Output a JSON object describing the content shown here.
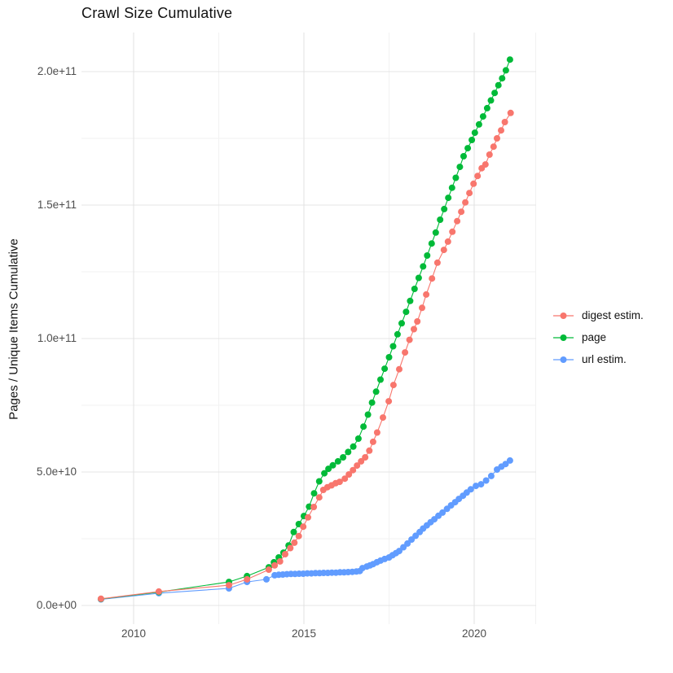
{
  "title": "Crawl Size Cumulative",
  "chart_data": {
    "type": "scatter",
    "title": "Crawl Size Cumulative",
    "xlabel": "",
    "ylabel": "Pages / Unique Items Cumulative",
    "x_ticks": [
      2010,
      2015,
      2020
    ],
    "x_tick_labels": [
      "2010",
      "2015",
      "2020"
    ],
    "x_minor_ticks": [
      2012.5,
      2017.5
    ],
    "y_tick_values_billions": [
      0,
      50,
      100,
      150,
      200
    ],
    "y_tick_labels": [
      "0.0e+00",
      "5.0e+10",
      "1.0e+11",
      "1.5e+11",
      "2.0e+11"
    ],
    "y_minor_values_billions": [
      25,
      75,
      125,
      175
    ],
    "xlim": [
      2008.6,
      2021.9
    ],
    "ylim_billions": [
      0,
      205
    ],
    "grid": true,
    "legend_position": "right",
    "value_unit_note": "point y-values are in billions (1e9) of pages/items",
    "series": [
      {
        "name": "digest estim.",
        "color": "#F8766D",
        "points": [
          [
            2009.04,
            2.5
          ],
          [
            2010.74,
            5.2
          ],
          [
            2012.8,
            7.6
          ],
          [
            2013.33,
            9.8
          ],
          [
            2013.97,
            13.4
          ],
          [
            2014.14,
            15.0
          ],
          [
            2014.3,
            16.5
          ],
          [
            2014.45,
            19.2
          ],
          [
            2014.6,
            21.5
          ],
          [
            2014.72,
            23.5
          ],
          [
            2014.85,
            26.0
          ],
          [
            2014.98,
            29.5
          ],
          [
            2015.12,
            33.0
          ],
          [
            2015.29,
            36.9
          ],
          [
            2015.45,
            40.5
          ],
          [
            2015.57,
            43.3
          ],
          [
            2015.69,
            44.3
          ],
          [
            2015.81,
            45.0
          ],
          [
            2015.93,
            45.8
          ],
          [
            2016.05,
            46.3
          ],
          [
            2016.2,
            47.5
          ],
          [
            2016.32,
            49.1
          ],
          [
            2016.44,
            50.7
          ],
          [
            2016.56,
            52.4
          ],
          [
            2016.68,
            54.0
          ],
          [
            2016.8,
            55.5
          ],
          [
            2016.92,
            58.0
          ],
          [
            2017.03,
            61.3
          ],
          [
            2017.15,
            64.8
          ],
          [
            2017.32,
            70.4
          ],
          [
            2017.49,
            76.5
          ],
          [
            2017.63,
            82.6
          ],
          [
            2017.8,
            88.5
          ],
          [
            2017.97,
            94.8
          ],
          [
            2018.1,
            99.5
          ],
          [
            2018.23,
            103.5
          ],
          [
            2018.33,
            106.4
          ],
          [
            2018.47,
            111.5
          ],
          [
            2018.59,
            116.5
          ],
          [
            2018.76,
            122.5
          ],
          [
            2018.92,
            128.4
          ],
          [
            2019.11,
            133.2
          ],
          [
            2019.23,
            136.3
          ],
          [
            2019.36,
            140.0
          ],
          [
            2019.5,
            144.0
          ],
          [
            2019.62,
            147.5
          ],
          [
            2019.74,
            151.0
          ],
          [
            2019.86,
            154.5
          ],
          [
            2019.98,
            158.0
          ],
          [
            2020.1,
            160.9
          ],
          [
            2020.22,
            163.8
          ],
          [
            2020.33,
            165.2
          ],
          [
            2020.45,
            168.9
          ],
          [
            2020.57,
            171.9
          ],
          [
            2020.67,
            175.0
          ],
          [
            2020.79,
            178.0
          ],
          [
            2020.9,
            181.1
          ],
          [
            2021.07,
            184.5
          ]
        ]
      },
      {
        "name": "page",
        "color": "#00BA38",
        "points": [
          [
            2009.04,
            2.4
          ],
          [
            2010.74,
            5.0
          ],
          [
            2012.8,
            8.8
          ],
          [
            2013.33,
            11.0
          ],
          [
            2013.97,
            14.3
          ],
          [
            2014.12,
            16.2
          ],
          [
            2014.26,
            18.0
          ],
          [
            2014.4,
            19.8
          ],
          [
            2014.55,
            22.5
          ],
          [
            2014.7,
            27.5
          ],
          [
            2014.85,
            30.5
          ],
          [
            2015.0,
            33.5
          ],
          [
            2015.15,
            37.0
          ],
          [
            2015.3,
            42.0
          ],
          [
            2015.45,
            46.5
          ],
          [
            2015.6,
            49.5
          ],
          [
            2015.72,
            51.2
          ],
          [
            2015.85,
            52.5
          ],
          [
            2016.0,
            54.0
          ],
          [
            2016.15,
            55.5
          ],
          [
            2016.3,
            57.5
          ],
          [
            2016.45,
            59.5
          ],
          [
            2016.6,
            62.5
          ],
          [
            2016.75,
            67.0
          ],
          [
            2016.88,
            71.5
          ],
          [
            2017.0,
            76.0
          ],
          [
            2017.12,
            80.1
          ],
          [
            2017.25,
            84.6
          ],
          [
            2017.37,
            88.7
          ],
          [
            2017.5,
            93.0
          ],
          [
            2017.62,
            97.1
          ],
          [
            2017.75,
            101.6
          ],
          [
            2017.87,
            105.7
          ],
          [
            2018.0,
            110.0
          ],
          [
            2018.12,
            114.1
          ],
          [
            2018.25,
            118.6
          ],
          [
            2018.37,
            122.7
          ],
          [
            2018.5,
            127.0
          ],
          [
            2018.62,
            131.1
          ],
          [
            2018.75,
            135.6
          ],
          [
            2018.87,
            139.7
          ],
          [
            2019.0,
            144.5
          ],
          [
            2019.12,
            148.5
          ],
          [
            2019.24,
            152.7
          ],
          [
            2019.35,
            156.5
          ],
          [
            2019.46,
            160.2
          ],
          [
            2019.58,
            164.3
          ],
          [
            2019.69,
            168.3
          ],
          [
            2019.81,
            171.3
          ],
          [
            2019.93,
            174.4
          ],
          [
            2020.02,
            177.1
          ],
          [
            2020.14,
            180.2
          ],
          [
            2020.26,
            183.2
          ],
          [
            2020.38,
            186.3
          ],
          [
            2020.49,
            189.2
          ],
          [
            2020.6,
            192.0
          ],
          [
            2020.71,
            194.9
          ],
          [
            2020.82,
            197.5
          ],
          [
            2020.93,
            200.5
          ],
          [
            2021.05,
            204.5
          ]
        ]
      },
      {
        "name": "url estim.",
        "color": "#619CFF",
        "points": [
          [
            2009.04,
            2.3
          ],
          [
            2010.74,
            4.6
          ],
          [
            2012.8,
            6.4
          ],
          [
            2013.33,
            8.8
          ],
          [
            2013.9,
            9.8
          ],
          [
            2014.14,
            11.3
          ],
          [
            2014.26,
            11.5
          ],
          [
            2014.38,
            11.6
          ],
          [
            2014.5,
            11.7
          ],
          [
            2014.62,
            11.8
          ],
          [
            2014.74,
            11.8
          ],
          [
            2014.86,
            11.9
          ],
          [
            2014.98,
            11.9
          ],
          [
            2015.1,
            12.0
          ],
          [
            2015.22,
            12.0
          ],
          [
            2015.34,
            12.1
          ],
          [
            2015.46,
            12.1
          ],
          [
            2015.58,
            12.2
          ],
          [
            2015.7,
            12.2
          ],
          [
            2015.82,
            12.3
          ],
          [
            2015.94,
            12.3
          ],
          [
            2016.06,
            12.4
          ],
          [
            2016.18,
            12.4
          ],
          [
            2016.3,
            12.5
          ],
          [
            2016.42,
            12.6
          ],
          [
            2016.54,
            12.7
          ],
          [
            2016.64,
            12.9
          ],
          [
            2016.72,
            14.0
          ],
          [
            2016.85,
            14.6
          ],
          [
            2016.94,
            15.0
          ],
          [
            2017.03,
            15.5
          ],
          [
            2017.14,
            16.2
          ],
          [
            2017.25,
            16.8
          ],
          [
            2017.37,
            17.4
          ],
          [
            2017.5,
            18.0
          ],
          [
            2017.6,
            18.8
          ],
          [
            2017.7,
            19.6
          ],
          [
            2017.8,
            20.4
          ],
          [
            2017.92,
            21.8
          ],
          [
            2018.04,
            23.2
          ],
          [
            2018.16,
            24.7
          ],
          [
            2018.28,
            26.1
          ],
          [
            2018.4,
            27.5
          ],
          [
            2018.5,
            28.8
          ],
          [
            2018.61,
            30.0
          ],
          [
            2018.72,
            31.2
          ],
          [
            2018.83,
            32.3
          ],
          [
            2018.95,
            33.6
          ],
          [
            2019.07,
            34.8
          ],
          [
            2019.2,
            36.2
          ],
          [
            2019.32,
            37.5
          ],
          [
            2019.44,
            38.7
          ],
          [
            2019.55,
            39.9
          ],
          [
            2019.67,
            41.1
          ],
          [
            2019.78,
            42.3
          ],
          [
            2019.9,
            43.5
          ],
          [
            2020.05,
            44.8
          ],
          [
            2020.2,
            45.4
          ],
          [
            2020.35,
            46.8
          ],
          [
            2020.5,
            48.5
          ],
          [
            2020.67,
            50.9
          ],
          [
            2020.8,
            52.0
          ],
          [
            2020.92,
            53.0
          ],
          [
            2021.05,
            54.3
          ]
        ]
      }
    ]
  },
  "legend": {
    "items": [
      {
        "label": "digest estim.",
        "color": "#F8766D"
      },
      {
        "label": "page",
        "color": "#00BA38"
      },
      {
        "label": "url estim.",
        "color": "#619CFF"
      }
    ]
  },
  "style": {
    "grid_major_color": "#E4E4E4",
    "grid_minor_color": "#F1F1F1",
    "axis_text_color": "#4D4D4D"
  }
}
